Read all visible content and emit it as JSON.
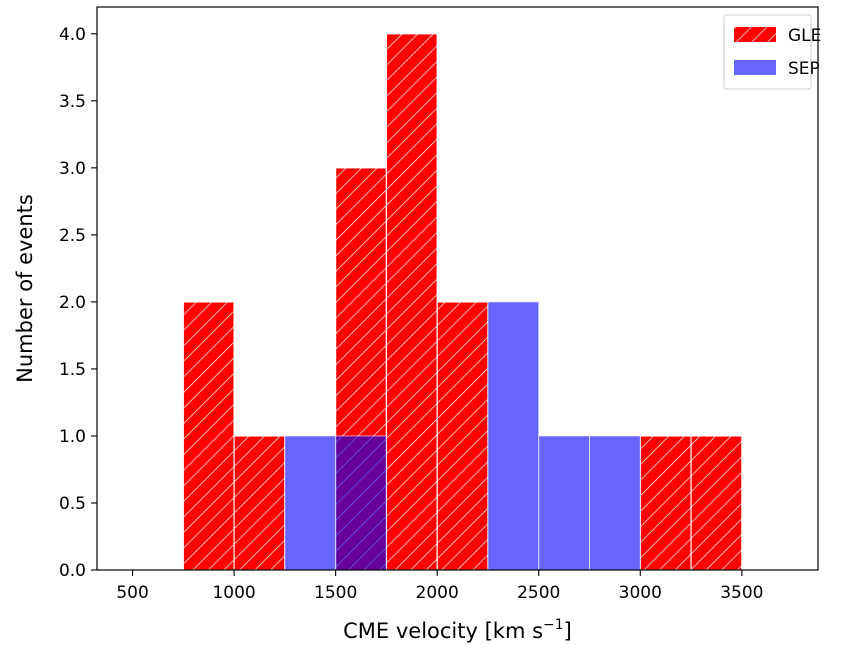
{
  "chart_data": {
    "type": "bar",
    "xlabel_main": "CME velocity [km s",
    "xlabel_sup": "−1",
    "xlabel_close": "]",
    "ylabel": "Number of events",
    "xlim": [
      325,
      3875
    ],
    "ylim": [
      0,
      4.2
    ],
    "xticks": [
      500,
      1000,
      1500,
      2000,
      2500,
      3000,
      3500
    ],
    "yticks": [
      0.0,
      0.5,
      1.0,
      1.5,
      2.0,
      2.5,
      3.0,
      3.5,
      4.0
    ],
    "ytick_labels": [
      "0.0",
      "0.5",
      "1.0",
      "1.5",
      "2.0",
      "2.5",
      "3.0",
      "3.5",
      "4.0"
    ],
    "bin_width": 250,
    "legend_position": "top-right",
    "series": [
      {
        "name": "GLE",
        "color": "#ff0000",
        "hatch": "diagonal white",
        "bin_starts": [
          750,
          1000,
          1500,
          1750,
          2000,
          3000,
          3250
        ],
        "values": [
          2,
          1,
          3,
          4,
          2,
          1,
          1
        ]
      },
      {
        "name": "SEP",
        "color": "#0000ff",
        "alpha": 0.6,
        "bin_starts": [
          1250,
          1500,
          2250,
          2500,
          2750
        ],
        "values": [
          1,
          1,
          2,
          1,
          1
        ]
      }
    ]
  }
}
